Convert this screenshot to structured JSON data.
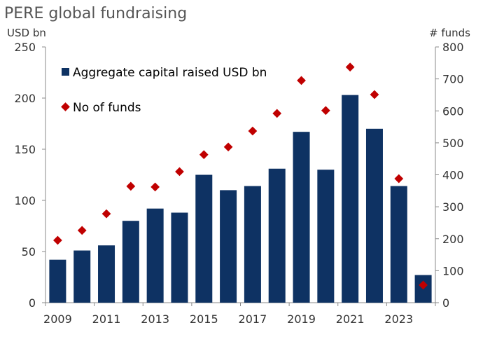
{
  "chart_data": {
    "type": "bar",
    "title": "PERE global fundraising",
    "ylabel": "USD bn",
    "y2label": "# funds",
    "ylim": [
      0,
      250
    ],
    "y2lim": [
      0,
      800
    ],
    "yticks": [
      0,
      50,
      100,
      150,
      200,
      250
    ],
    "y2ticks": [
      0,
      100,
      200,
      300,
      400,
      500,
      600,
      700,
      800
    ],
    "categories": [
      "2009",
      "2010",
      "2011",
      "2012",
      "2013",
      "2014",
      "2015",
      "2016",
      "2017",
      "2018",
      "2019",
      "2020",
      "2021",
      "2022",
      "2023",
      "2024"
    ],
    "xtick_labels": [
      "2009",
      "",
      "2011",
      "",
      "2013",
      "",
      "2015",
      "",
      "2017",
      "",
      "2019",
      "",
      "2021",
      "",
      "2023",
      ""
    ],
    "series": [
      {
        "name": "Aggregate capital raised USD bn",
        "type": "bar",
        "axis": "left",
        "color": "#0e3263",
        "values": [
          42,
          51,
          56,
          80,
          92,
          88,
          125,
          110,
          114,
          131,
          167,
          130,
          203,
          170,
          114,
          27
        ]
      },
      {
        "name": "No of funds",
        "type": "scatter",
        "marker": "diamond",
        "axis": "right",
        "color": "#c00000",
        "values": [
          195,
          226,
          278,
          364,
          362,
          410,
          463,
          487,
          537,
          592,
          695,
          601,
          737,
          651,
          388,
          55
        ]
      }
    ],
    "legend": "top-left",
    "grid": false
  }
}
